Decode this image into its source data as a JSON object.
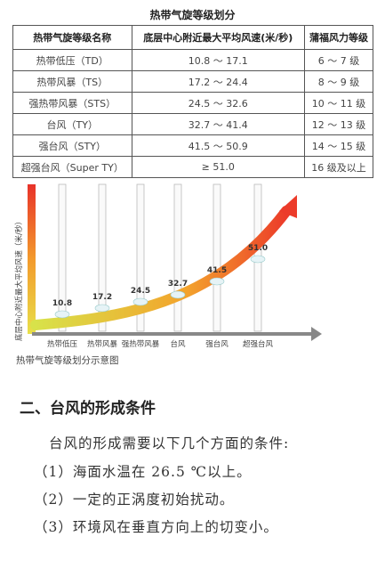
{
  "table": {
    "title": "热带气旋等级划分",
    "headers": [
      "热带气旋等级名称",
      "底层中心附近最大平均风速(米/秒)",
      "蒲福风力等级"
    ],
    "rows": [
      [
        "热带低压（TD）",
        "10.8 ～ 17.1",
        "6 ～ 7 级"
      ],
      [
        "热带风暴（TS）",
        "17.2 ～ 24.4",
        "8 ～ 9 级"
      ],
      [
        "强热带风暴（STS）",
        "24.5 ～ 32.6",
        "10 ～ 11 级"
      ],
      [
        "台风（TY）",
        "32.7 ～ 41.4",
        "12 ～ 13 级"
      ],
      [
        "强台风（STY）",
        "41.5 ～ 50.9",
        "14 ～ 15 级"
      ],
      [
        "超强台风（Super TY）",
        "≥ 51.0",
        "16 级及以上"
      ]
    ]
  },
  "diagram": {
    "axis_label": "底层中心附近最大平均风速（米/秒）",
    "labels": [
      "10.8",
      "17.2",
      "24.5",
      "32.7",
      "41.5",
      "51.0"
    ],
    "categories": [
      "热带低压",
      "热带风暴",
      "强热带风暴",
      "台风",
      "强台风",
      "超强台风"
    ],
    "caption": "热带气旋等级划分示意图"
  },
  "section": {
    "heading": "二、台风的形成条件",
    "paragraphs": [
      "台风的形成需要以下几个方面的条件:",
      "（1）海面水温在 26.5 ℃以上。",
      "（2）一定的正涡度初始扰动。",
      "（3）环境风在垂直方向上的切变小。"
    ]
  }
}
